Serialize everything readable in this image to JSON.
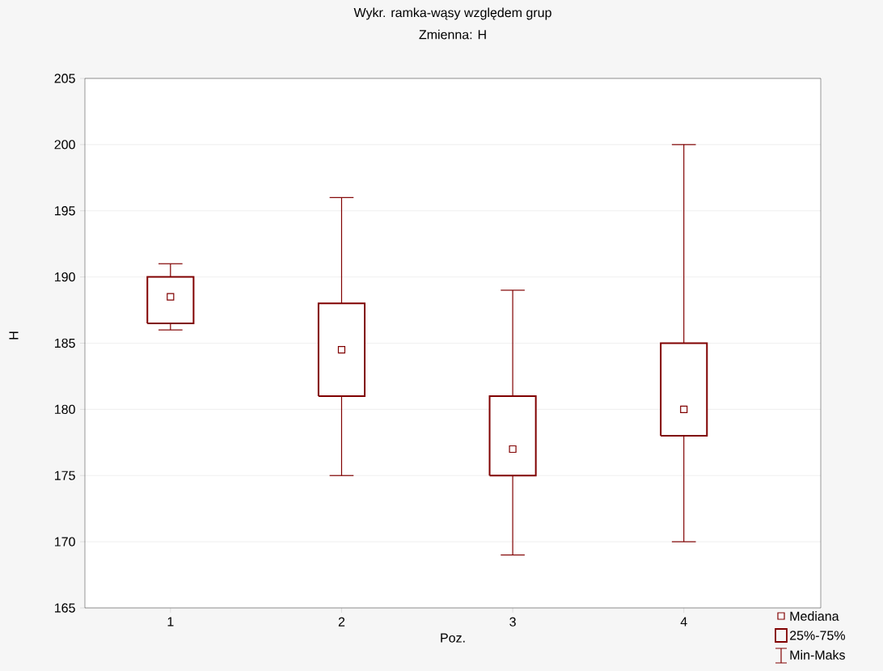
{
  "chart_data": {
    "type": "box",
    "title": "Wykr. ramka-wąsy względem grup",
    "subtitle": "Zmienna: H",
    "xlabel": "Poz.",
    "ylabel": "H",
    "categories": [
      "1",
      "2",
      "3",
      "4"
    ],
    "series": [
      {
        "color": "#800000",
        "boxes": [
          {
            "low": 186,
            "q1": 186.5,
            "median": 188.5,
            "q3": 190,
            "high": 191
          },
          {
            "low": 175,
            "q1": 181,
            "median": 184.5,
            "q3": 188,
            "high": 196
          },
          {
            "low": 169,
            "q1": 175,
            "median": 177,
            "q3": 181,
            "high": 189
          },
          {
            "low": 170,
            "q1": 178,
            "median": 180,
            "q3": 185,
            "high": 200
          }
        ]
      }
    ],
    "ylim": [
      165,
      205
    ],
    "yticks": [
      165,
      170,
      175,
      180,
      185,
      190,
      195,
      200,
      205
    ],
    "grid": "y",
    "marker": "square",
    "annotations": [
      "Mediana",
      "25%-75%",
      "Min-Maks"
    ]
  }
}
